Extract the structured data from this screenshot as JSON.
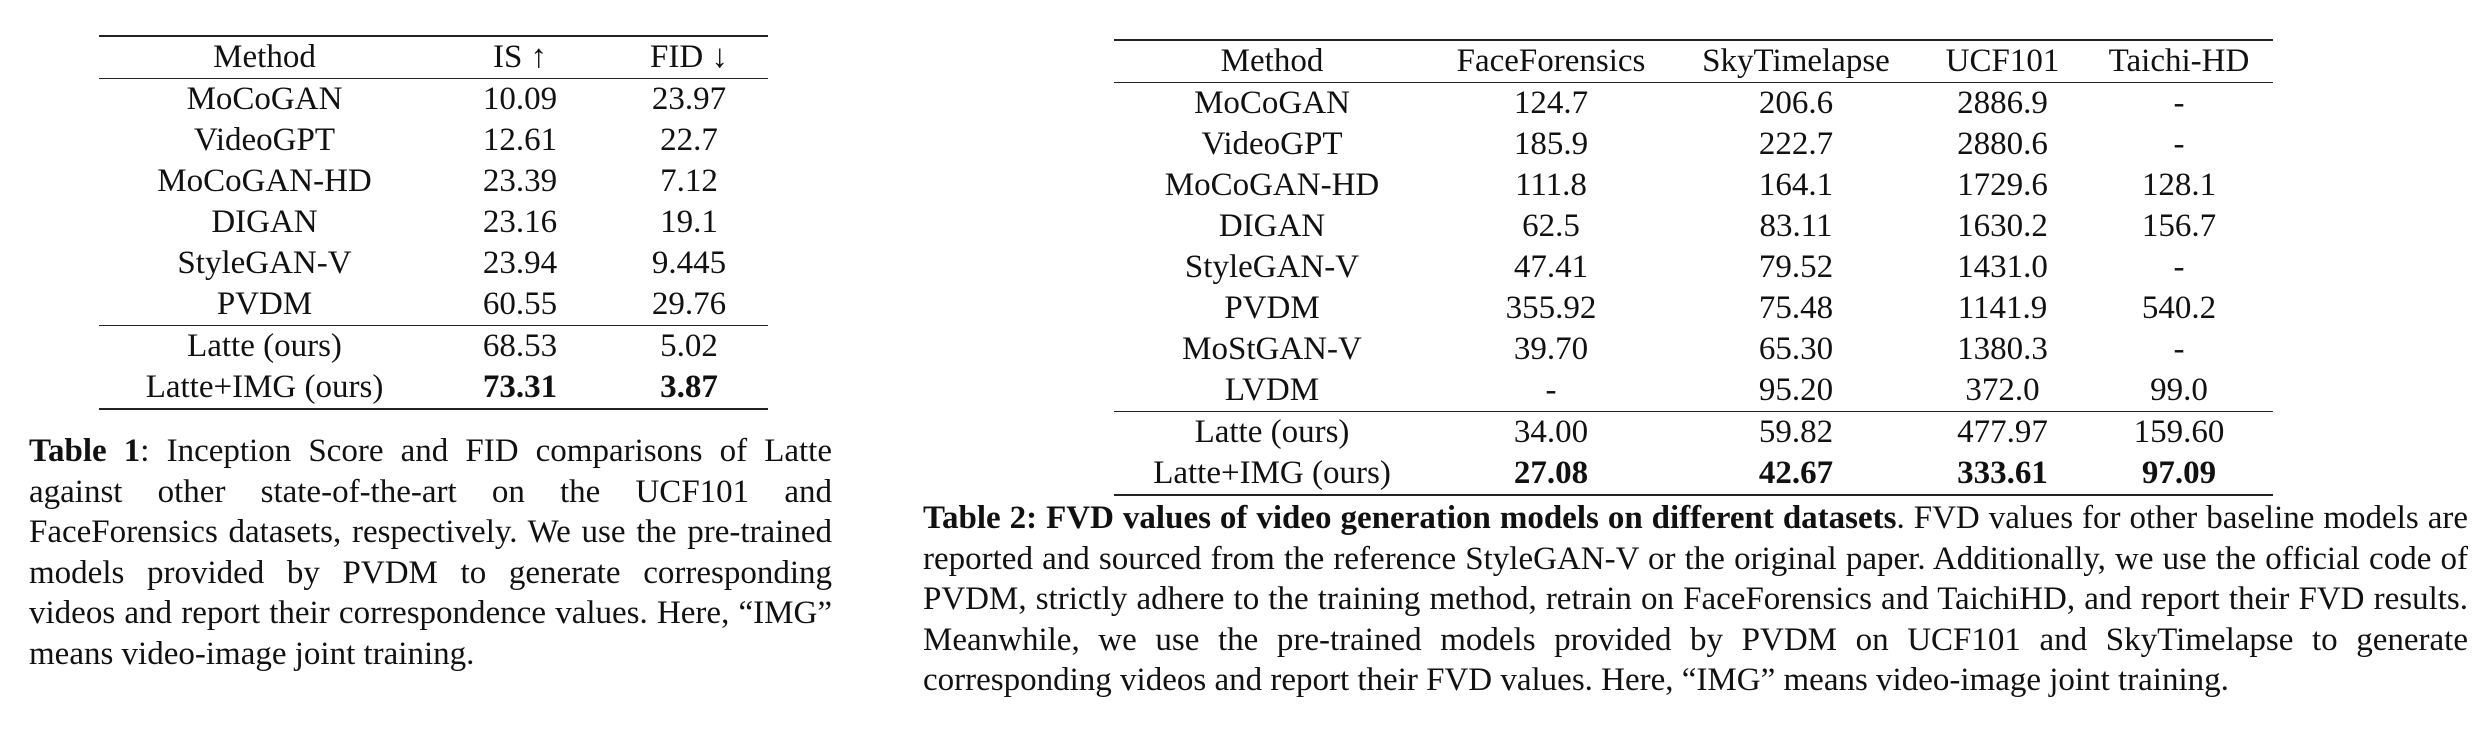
{
  "table_1": {
    "headers": [
      "Method",
      "IS ↑",
      "FID ↓"
    ],
    "groups": [
      [
        [
          "MoCoGAN",
          "10.09",
          "23.97"
        ],
        [
          "VideoGPT",
          "12.61",
          "22.7"
        ],
        [
          "MoCoGAN-HD",
          "23.39",
          "7.12"
        ],
        [
          "DIGAN",
          "23.16",
          "19.1"
        ],
        [
          "StyleGAN-V",
          "23.94",
          "9.445"
        ],
        [
          "PVDM",
          "60.55",
          "29.76"
        ]
      ],
      [
        [
          "Latte (ours)",
          "68.53",
          "5.02"
        ],
        [
          "Latte+IMG (ours)",
          "73.31",
          "3.87"
        ]
      ]
    ],
    "bold_last_row": true,
    "caption": {
      "label": "Table 1",
      "text": ": Inception Score and FID comparisons of Latte against other state-of-the-art on the UCF101 and FaceForensics datasets, respectively. We use the pre-trained models provided by PVDM to generate corresponding videos and report their correspondence values. Here, “IMG” means video-image joint training."
    }
  },
  "table_2": {
    "headers": [
      "Method",
      "FaceForensics",
      "SkyTimelapse",
      "UCF101",
      "Taichi-HD"
    ],
    "groups": [
      [
        [
          "MoCoGAN",
          "124.7",
          "206.6",
          "2886.9",
          "-"
        ],
        [
          "VideoGPT",
          "185.9",
          "222.7",
          "2880.6",
          "-"
        ],
        [
          "MoCoGAN-HD",
          "111.8",
          "164.1",
          "1729.6",
          "128.1"
        ],
        [
          "DIGAN",
          "62.5",
          "83.11",
          "1630.2",
          "156.7"
        ],
        [
          "StyleGAN-V",
          "47.41",
          "79.52",
          "1431.0",
          "-"
        ],
        [
          "PVDM",
          "355.92",
          "75.48",
          "1141.9",
          "540.2"
        ],
        [
          "MoStGAN-V",
          "39.70",
          "65.30",
          "1380.3",
          "-"
        ],
        [
          "LVDM",
          "-",
          "95.20",
          "372.0",
          "99.0"
        ]
      ],
      [
        [
          "Latte (ours)",
          "34.00",
          "59.82",
          "477.97",
          "159.60"
        ],
        [
          "Latte+IMG (ours)",
          "27.08",
          "42.67",
          "333.61",
          "97.09"
        ]
      ]
    ],
    "bold_last_row": true,
    "caption": {
      "label": "Table 2",
      "title": ": FVD values of video generation models on different datasets",
      "text": ". FVD values for other baseline models are reported and sourced from the reference StyleGAN-V or the original paper. Additionally, we use the official code of PVDM, strictly adhere to the training method, retrain on FaceForensics and TaichiHD, and report their FVD results. Meanwhile, we use the pre-trained models provided by PVDM on UCF101 and SkyTimelapse to generate corresponding videos and report their FVD values. Here, “IMG” means video-image joint training."
    }
  }
}
